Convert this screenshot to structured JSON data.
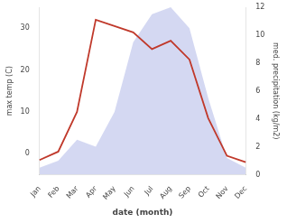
{
  "chart_data": {
    "type": "line",
    "xlabel": "date (month)",
    "ylabel": "max temp (C)",
    "y2label": "med. precipitation (kg/m2)",
    "categories": [
      "Jan",
      "Feb",
      "Mar",
      "Apr",
      "May",
      "Jun",
      "Jul",
      "Aug",
      "Sep",
      "Oct",
      "Nov",
      "Dec"
    ],
    "series": [
      {
        "type": "area",
        "axis": "y2",
        "color": "#b0b8e8",
        "values": [
          0.5,
          1.0,
          2.5,
          2.0,
          4.5,
          9.5,
          11.5,
          12.0,
          10.5,
          5.5,
          1.2,
          0.5
        ]
      },
      {
        "type": "line",
        "axis": "y",
        "color": "#c0392b",
        "values": [
          -1.5,
          0.5,
          10,
          32,
          30.5,
          29,
          25,
          27,
          22.5,
          8.5,
          -0.5,
          -2
        ]
      }
    ],
    "ylim": [
      -5,
      35
    ],
    "yticks": [
      0,
      10,
      20,
      30
    ],
    "y2lim": [
      0,
      12
    ],
    "y2ticks": [
      0,
      2,
      4,
      6,
      8,
      10,
      12
    ],
    "grid": false
  }
}
